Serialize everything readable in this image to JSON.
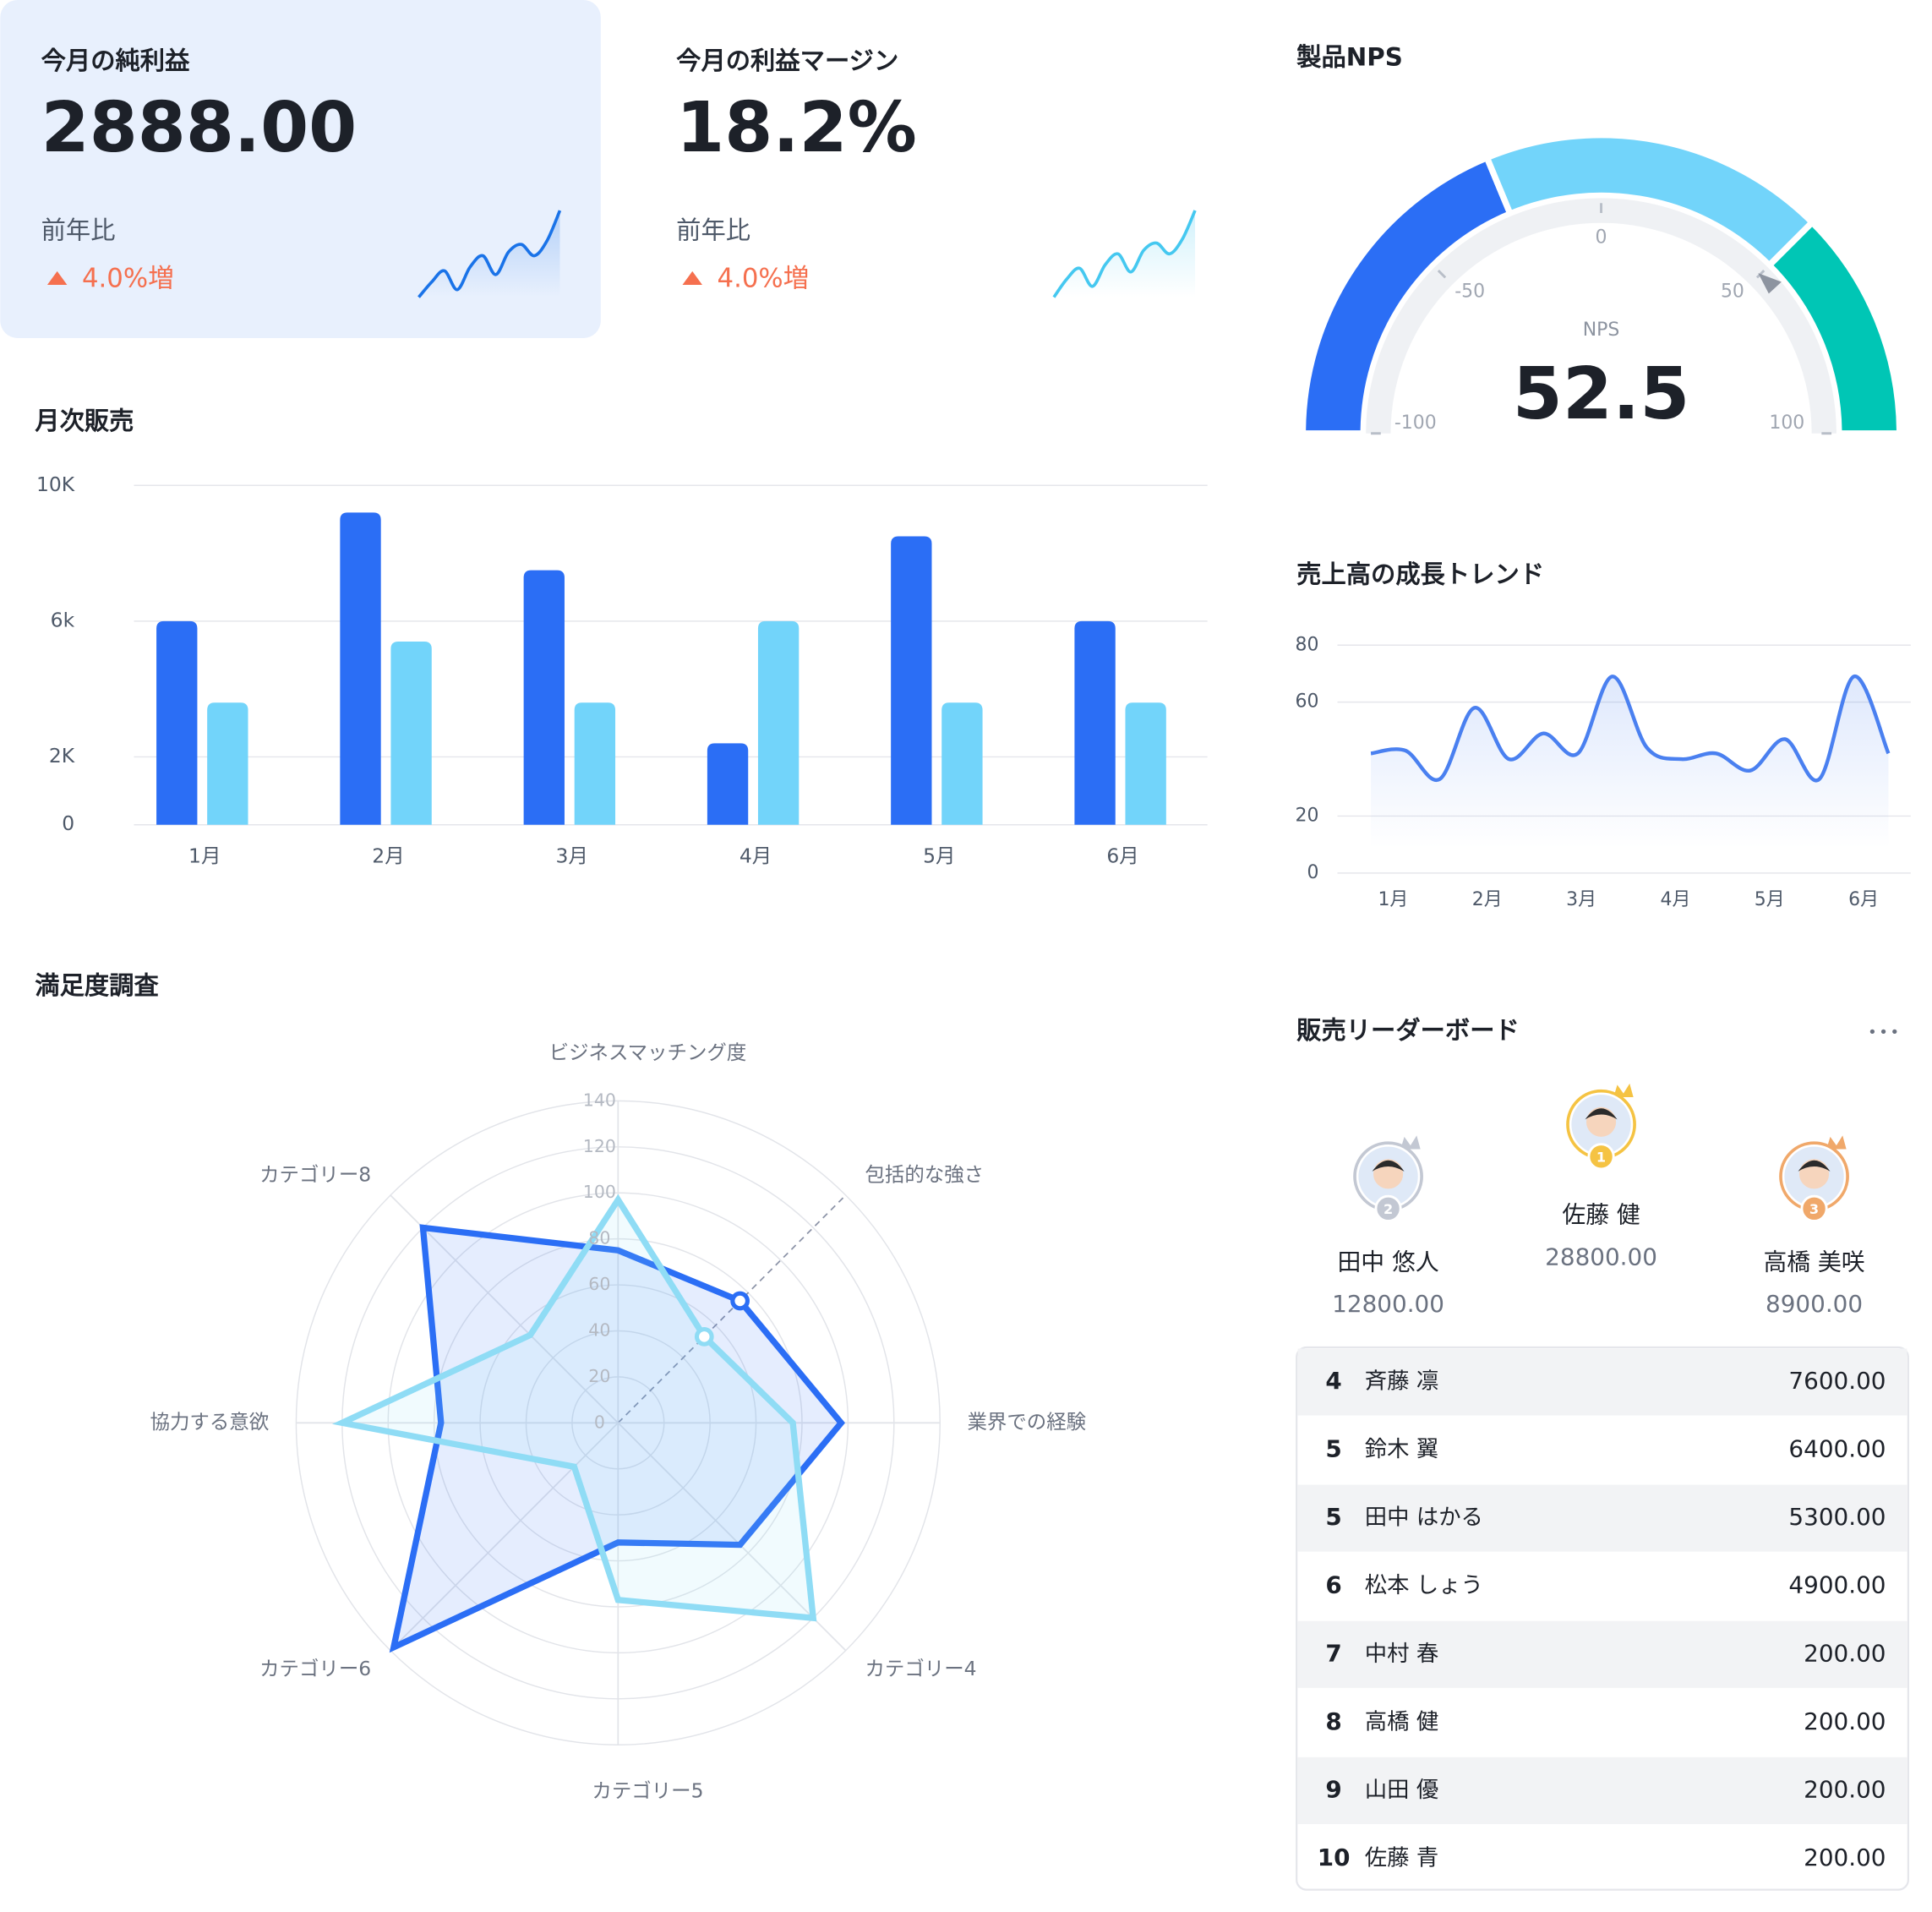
{
  "kpis": [
    {
      "title": "今月の純利益",
      "value": "2888.00",
      "compare_label": "前年比",
      "change": "4.0%増",
      "color": "#1a73e8",
      "sparkline": [
        0,
        8,
        14,
        4,
        16,
        22,
        12,
        24,
        28,
        22,
        30,
        46
      ]
    },
    {
      "title": "今月の利益マージン",
      "value": "18.2%",
      "compare_label": "前年比",
      "change": "4.0%増",
      "color": "#45c8f0",
      "sparkline": [
        0,
        10,
        16,
        6,
        18,
        24,
        14,
        26,
        30,
        24,
        32,
        48
      ]
    }
  ],
  "chart_data": [
    {
      "type": "gauge",
      "title": "製品NPS",
      "label": "NPS",
      "value": 52.5,
      "range": [
        -100,
        100
      ],
      "ticks": [
        -100,
        -50,
        0,
        50,
        100
      ],
      "bands": [
        {
          "to": -25,
          "color": "#2b6ef5"
        },
        {
          "to": 50,
          "color": "#72d4fa"
        },
        {
          "to": 100,
          "color": "#00c6b5"
        }
      ]
    },
    {
      "type": "bar",
      "title": "月次販売",
      "categories": [
        "1月",
        "2月",
        "3月",
        "4月",
        "5月",
        "6月"
      ],
      "series": [
        {
          "color": "#2b6ef5",
          "values": [
            6000,
            9200,
            7500,
            2400,
            8500,
            6000
          ]
        },
        {
          "color": "#72d4fa",
          "values": [
            3600,
            5400,
            3600,
            6000,
            3600,
            3600
          ]
        }
      ],
      "ylim": [
        0,
        10000
      ],
      "yticks": [
        0,
        {
          "value": 2000,
          "label": "2K"
        },
        {
          "value": 6000,
          "label": "6k"
        },
        {
          "value": 10000,
          "label": "10K"
        }
      ],
      "grid": true
    },
    {
      "type": "line",
      "title": "売上高の成長トレンド",
      "xticks": [
        "1月",
        "2月",
        "3月",
        "4月",
        "5月",
        "6月"
      ],
      "series": [
        {
          "color": "#4a80f0",
          "values": [
            42,
            43,
            33,
            58,
            40,
            49,
            42,
            69,
            44,
            40,
            42,
            36,
            47,
            33,
            69,
            42
          ]
        }
      ],
      "ylim": [
        0,
        80
      ],
      "yticks": [
        0,
        20,
        60,
        80
      ],
      "grid": true
    },
    {
      "type": "radar",
      "title": "満足度調査",
      "categories": [
        "ビジネスマッチング度",
        "包括的な強さ",
        "業界での経験",
        "カテゴリー4",
        "カテゴリー5",
        "カテゴリー6",
        "協力する意欲",
        "カテゴリー8"
      ],
      "series": [
        {
          "color": "#2b6ef5",
          "values": [
            75,
            75,
            97,
            75,
            52,
            138,
            77,
            120
          ]
        },
        {
          "color": "#8fdcf5",
          "values": [
            97,
            53,
            76,
            120,
            77,
            27,
            120,
            54
          ]
        }
      ],
      "rlim": [
        0,
        140
      ],
      "rticks": [
        0,
        20,
        40,
        60,
        80,
        100,
        120,
        140
      ]
    }
  ],
  "leaderboard": {
    "title": "販売リーダーボード",
    "podium": [
      {
        "rank": 2,
        "name": "田中 悠人",
        "score": "12800.00"
      },
      {
        "rank": 1,
        "name": "佐藤 健",
        "score": "28800.00"
      },
      {
        "rank": 3,
        "name": "高橋 美咲",
        "score": "8900.00"
      }
    ],
    "rows": [
      {
        "rank": 4,
        "name": "斉藤 凛",
        "score": "7600.00"
      },
      {
        "rank": 5,
        "name": "鈴木 翼",
        "score": "6400.00"
      },
      {
        "rank": 5,
        "name": "田中 はかる",
        "score": "5300.00"
      },
      {
        "rank": 6,
        "name": "松本 しょう",
        "score": "4900.00"
      },
      {
        "rank": 7,
        "name": "中村 春",
        "score": "200.00"
      },
      {
        "rank": 8,
        "name": "高橋 健",
        "score": "200.00"
      },
      {
        "rank": 9,
        "name": "山田 優",
        "score": "200.00"
      },
      {
        "rank": 10,
        "name": "佐藤 青",
        "score": "200.00"
      }
    ]
  }
}
